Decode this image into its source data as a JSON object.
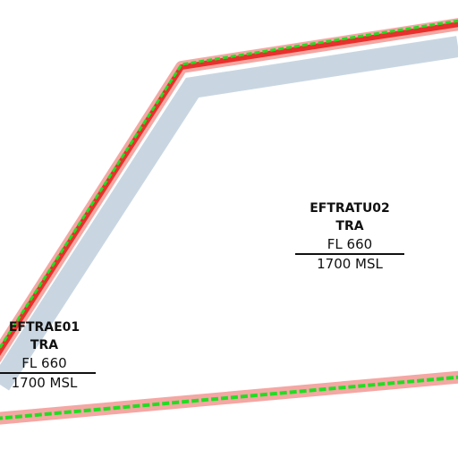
{
  "areas": [
    {
      "name": "EFTRATU02 TRA",
      "upper": "FL 660",
      "lower": "1700 MSL"
    },
    {
      "name": "EFTRAE01 TRA",
      "upper": "FL 660",
      "lower": "1700 MSL"
    }
  ]
}
